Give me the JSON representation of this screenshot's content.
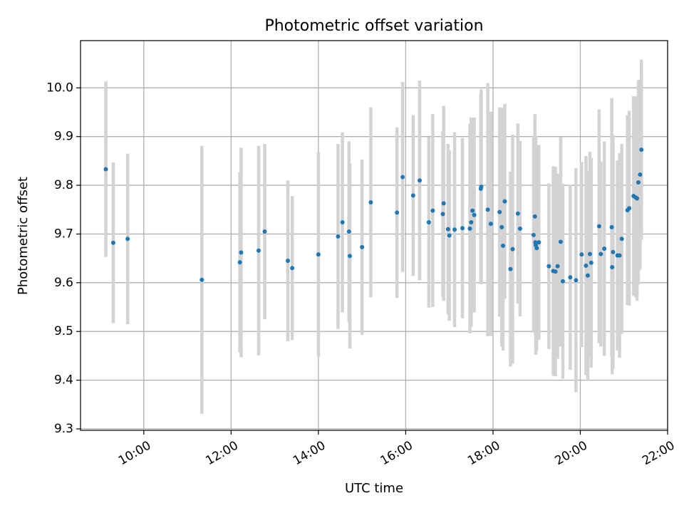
{
  "chart_data": {
    "type": "scatter",
    "title": "Photometric offset variation",
    "xlabel": "UTC time",
    "ylabel": "Photometric offset",
    "x_unit": "hours (UTC)",
    "xlim": [
      8.55,
      22.0
    ],
    "ylim": [
      9.297,
      10.097
    ],
    "x_ticks": [
      {
        "value": 10,
        "label": "10:00"
      },
      {
        "value": 12,
        "label": "12:00"
      },
      {
        "value": 14,
        "label": "14:00"
      },
      {
        "value": 16,
        "label": "16:00"
      },
      {
        "value": 18,
        "label": "18:00"
      },
      {
        "value": 20,
        "label": "20:00"
      },
      {
        "value": 22,
        "label": "22:00"
      }
    ],
    "y_ticks": [
      {
        "value": 9.3,
        "label": "9.3"
      },
      {
        "value": 9.4,
        "label": "9.4"
      },
      {
        "value": 9.5,
        "label": "9.5"
      },
      {
        "value": 9.6,
        "label": "9.6"
      },
      {
        "value": 9.7,
        "label": "9.7"
      },
      {
        "value": 9.8,
        "label": "9.8"
      },
      {
        "value": 9.9,
        "label": "9.9"
      },
      {
        "value": 10.0,
        "label": "10.0"
      }
    ],
    "grid": true,
    "colors": {
      "point": "#1f77b4",
      "errorbar": "#d3d3d3",
      "grid": "#b0b0b0"
    },
    "series": [
      {
        "x": [
          9.13,
          9.3,
          9.63,
          11.33,
          12.2,
          12.23,
          12.63,
          12.77,
          13.3,
          13.4,
          14.0,
          14.45,
          14.55,
          14.7,
          14.72,
          15.0,
          15.2,
          15.8,
          15.93,
          16.17,
          16.32,
          16.53,
          16.62,
          16.85,
          16.87,
          16.97,
          17.0,
          17.12,
          17.3,
          17.47,
          17.5,
          17.53,
          17.57,
          17.72,
          17.73,
          17.88,
          17.95,
          18.15,
          18.2,
          18.23,
          18.27,
          18.4,
          18.45,
          18.57,
          18.62,
          18.93,
          18.96,
          18.97,
          18.98,
          19.0,
          19.05,
          19.28,
          19.38,
          19.43,
          19.48,
          19.55,
          19.6,
          19.77,
          19.9,
          20.03,
          20.13,
          20.17,
          20.22,
          20.25,
          20.43,
          20.47,
          20.55,
          20.72,
          20.73,
          20.75,
          20.85,
          20.9,
          20.95,
          21.08,
          21.12,
          21.22,
          21.27,
          21.3,
          21.33,
          21.37,
          21.4
        ],
        "y": [
          9.833,
          9.682,
          9.69,
          9.606,
          9.642,
          9.662,
          9.666,
          9.705,
          9.645,
          9.63,
          9.658,
          9.695,
          9.724,
          9.705,
          9.655,
          9.673,
          9.765,
          9.744,
          9.817,
          9.779,
          9.81,
          9.724,
          9.748,
          9.741,
          9.763,
          9.71,
          9.697,
          9.709,
          9.712,
          9.711,
          9.724,
          9.748,
          9.739,
          9.793,
          9.797,
          9.75,
          9.721,
          9.745,
          9.714,
          9.676,
          9.767,
          9.628,
          9.669,
          9.742,
          9.711,
          9.698,
          9.736,
          9.683,
          9.677,
          9.671,
          9.683,
          9.634,
          9.624,
          9.623,
          9.634,
          9.684,
          9.603,
          9.611,
          9.605,
          9.658,
          9.635,
          9.615,
          9.659,
          9.641,
          9.716,
          9.659,
          9.67,
          9.714,
          9.632,
          9.663,
          9.656,
          9.656,
          9.69,
          9.749,
          9.753,
          9.778,
          9.775,
          9.773,
          9.806,
          9.822,
          9.873
        ],
        "yerr": [
          0.18,
          0.165,
          0.175,
          0.275,
          0.185,
          0.215,
          0.215,
          0.18,
          0.165,
          0.148,
          0.21,
          0.19,
          0.185,
          0.185,
          0.19,
          0.18,
          0.195,
          0.175,
          0.195,
          0.165,
          0.205,
          0.175,
          0.198,
          0.17,
          0.2,
          0.175,
          0.175,
          0.2,
          0.185,
          0.215,
          0.215,
          0.19,
          0.2,
          0.195,
          0.2,
          0.26,
          0.23,
          0.215,
          0.245,
          0.215,
          0.2,
          0.2,
          0.235,
          0.185,
          0.18,
          0.2,
          0.21,
          0.19,
          0.225,
          0.21,
          0.2,
          0.17,
          0.215,
          0.215,
          0.19,
          0.215,
          0.2,
          0.19,
          0.23,
          0.19,
          0.225,
          0.215,
          0.21,
          0.215,
          0.24,
          0.19,
          0.22,
          0.265,
          0.22,
          0.24,
          0.195,
          0.21,
          0.195,
          0.195,
          0.2,
          0.205,
          0.205,
          0.21,
          0.21,
          0.195,
          0.185
        ]
      }
    ]
  }
}
